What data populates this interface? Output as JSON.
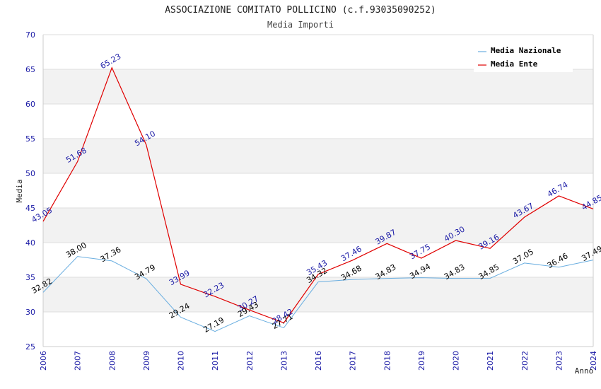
{
  "chart_data": {
    "type": "line",
    "title": "ASSOCIAZIONE COMITATO POLLICINO (c.f.93035090252)",
    "subtitle": "Media Importi",
    "xlabel": "Anno",
    "ylabel": "Media",
    "ylim": [
      25,
      70
    ],
    "yticks": [
      25,
      30,
      35,
      40,
      45,
      50,
      55,
      60,
      65,
      70
    ],
    "categories": [
      "2006",
      "2007",
      "2008",
      "2009",
      "2010",
      "2011",
      "2012",
      "2013",
      "2016",
      "2017",
      "2018",
      "2019",
      "2020",
      "2021",
      "2022",
      "2023",
      "2024"
    ],
    "legend_position": "top-right",
    "grid": true,
    "series": [
      {
        "name": "Media Nazionale",
        "color": "#6aaee0",
        "label_color": "#000000",
        "values": [
          32.82,
          38.0,
          37.36,
          34.79,
          29.24,
          27.19,
          29.43,
          27.71,
          34.32,
          34.68,
          34.83,
          34.94,
          34.83,
          34.85,
          37.05,
          36.46,
          37.49
        ],
        "labels": [
          "32.82",
          "38.00",
          "37.36",
          "34.79",
          "29.24",
          "27.19",
          "29.43",
          "27.71",
          "34.32",
          "34.68",
          "34.83",
          "34.94",
          "34.83",
          "34.85",
          "37.05",
          "36.46",
          "37.49"
        ]
      },
      {
        "name": "Media Ente",
        "color": "#e00000",
        "label_color": "#1a1aa6",
        "values": [
          43.05,
          51.68,
          65.23,
          54.1,
          33.99,
          32.23,
          30.27,
          28.42,
          35.43,
          37.46,
          39.87,
          37.75,
          40.3,
          39.16,
          43.67,
          46.74,
          44.85
        ],
        "labels": [
          "43.05",
          "51.68",
          "65.23",
          "54.10",
          "33.99",
          "32.23",
          "30.27",
          "28.42",
          "35.43",
          "37.46",
          "39.87",
          "37.75",
          "40.30",
          "39.16",
          "43.67",
          "46.74",
          "44.85"
        ]
      }
    ],
    "colors": {
      "band": "#f2f2f2",
      "grid": "#dddddd",
      "tick_text": "#1a1aa6"
    }
  }
}
